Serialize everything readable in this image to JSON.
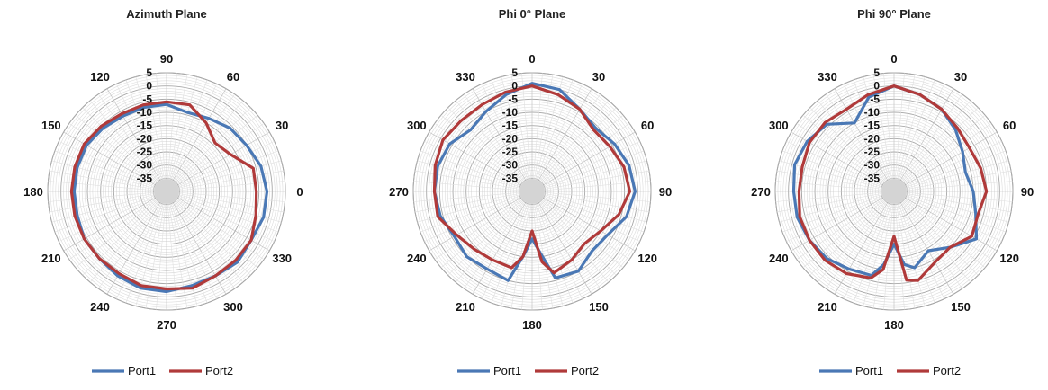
{
  "colors": {
    "port1": "#4a78b5",
    "port2": "#b03a3a",
    "grid": "#bdbdbd",
    "spoke": "#cfcfcf"
  },
  "chart_data": [
    {
      "type": "polar-line",
      "title": "Azimuth Plane",
      "radial_ticks": [
        "5",
        "0",
        "-5",
        "-10",
        "-15",
        "-20",
        "-25",
        "-30",
        "-35"
      ],
      "rlim": [
        -40,
        5
      ],
      "angle_labels": [
        {
          "deg": 90,
          "text": "90"
        },
        {
          "deg": 60,
          "text": "60"
        },
        {
          "deg": 30,
          "text": "30"
        },
        {
          "deg": 0,
          "text": "0"
        },
        {
          "deg": 330,
          "text": "330"
        },
        {
          "deg": 300,
          "text": "300"
        },
        {
          "deg": 270,
          "text": "270"
        },
        {
          "deg": 240,
          "text": "240"
        },
        {
          "deg": 210,
          "text": "210"
        },
        {
          "deg": 180,
          "text": "180"
        },
        {
          "deg": 150,
          "text": "150"
        },
        {
          "deg": 120,
          "text": "120"
        }
      ],
      "angle_convention": "counterclockwise-from-right",
      "legend": [
        "Port1",
        "Port2"
      ],
      "legend_position": "bottom",
      "series": [
        {
          "name": "Port1",
          "color": "#4a78b5",
          "angles": [
            0,
            15,
            30,
            45,
            60,
            75,
            90,
            105,
            120,
            135,
            150,
            165,
            180,
            195,
            210,
            225,
            240,
            255,
            270,
            285,
            300,
            315,
            330,
            345
          ],
          "values": [
            -2,
            -3,
            -5,
            -6,
            -8,
            -9,
            -7,
            -7,
            -7,
            -6,
            -5,
            -5,
            -5,
            -5,
            -4,
            -4,
            -3,
            -2,
            -2,
            -3,
            -3,
            -2,
            -3,
            -2
          ]
        },
        {
          "name": "Port2",
          "color": "#b03a3a",
          "angles": [
            0,
            15,
            30,
            45,
            60,
            75,
            90,
            105,
            120,
            135,
            150,
            165,
            180,
            195,
            210,
            225,
            240,
            255,
            270,
            285,
            300,
            315,
            330,
            345
          ],
          "values": [
            -6,
            -6,
            -12,
            -14,
            -10,
            -6,
            -6,
            -6,
            -6,
            -5,
            -4,
            -4,
            -4,
            -4,
            -4,
            -4,
            -4,
            -3,
            -3,
            -2,
            -3,
            -3,
            -3,
            -5
          ]
        }
      ]
    },
    {
      "type": "polar-line",
      "title": "Phi 0° Plane",
      "radial_ticks": [
        "5",
        "0",
        "-5",
        "-10",
        "-15",
        "-20",
        "-25",
        "-30",
        "-35"
      ],
      "rlim": [
        -40,
        5
      ],
      "angle_labels": [
        {
          "deg": 0,
          "text": "0"
        },
        {
          "deg": 30,
          "text": "30"
        },
        {
          "deg": 60,
          "text": "60"
        },
        {
          "deg": 90,
          "text": "90"
        },
        {
          "deg": 120,
          "text": "120"
        },
        {
          "deg": 150,
          "text": "150"
        },
        {
          "deg": 180,
          "text": "180"
        },
        {
          "deg": 210,
          "text": "210"
        },
        {
          "deg": 240,
          "text": "240"
        },
        {
          "deg": 270,
          "text": "270"
        },
        {
          "deg": 300,
          "text": "300"
        },
        {
          "deg": 330,
          "text": "330"
        }
      ],
      "angle_convention": "clockwise-from-top",
      "legend": [
        "Port1",
        "Port2"
      ],
      "legend_position": "bottom",
      "series": [
        {
          "name": "Port1",
          "color": "#4a78b5",
          "angles": [
            0,
            15,
            30,
            45,
            60,
            75,
            90,
            105,
            120,
            135,
            150,
            165,
            172,
            180,
            188,
            195,
            210,
            225,
            240,
            255,
            270,
            285,
            300,
            315,
            330,
            345
          ],
          "values": [
            1,
            0,
            -4,
            -6,
            -4,
            -2,
            -1,
            -3,
            -7,
            -8,
            -5,
            -6,
            -16,
            -22,
            -15,
            -5,
            -6,
            -5,
            -6,
            -4,
            -3,
            -3,
            -4,
            -7,
            -5,
            -2
          ]
        },
        {
          "name": "Port2",
          "color": "#b03a3a",
          "angles": [
            0,
            15,
            30,
            45,
            60,
            75,
            90,
            105,
            120,
            135,
            150,
            165,
            172,
            180,
            188,
            195,
            210,
            225,
            240,
            255,
            270,
            285,
            300,
            315,
            330,
            345
          ],
          "values": [
            0,
            -2,
            -4,
            -7,
            -6,
            -4,
            -3,
            -6,
            -10,
            -12,
            -10,
            -8,
            -13,
            -25,
            -15,
            -10,
            -10,
            -9,
            -7,
            -3,
            -3,
            -2,
            -1,
            -2,
            -2,
            -1
          ]
        }
      ]
    },
    {
      "type": "polar-line",
      "title": "Phi 90° Plane",
      "radial_ticks": [
        "5",
        "0",
        "-5",
        "-10",
        "-15",
        "-20",
        "-25",
        "-30",
        "-35"
      ],
      "rlim": [
        -40,
        5
      ],
      "angle_labels": [
        {
          "deg": 0,
          "text": "0"
        },
        {
          "deg": 30,
          "text": "30"
        },
        {
          "deg": 60,
          "text": "60"
        },
        {
          "deg": 90,
          "text": "90"
        },
        {
          "deg": 120,
          "text": "120"
        },
        {
          "deg": 150,
          "text": "150"
        },
        {
          "deg": 180,
          "text": "180"
        },
        {
          "deg": 210,
          "text": "210"
        },
        {
          "deg": 240,
          "text": "240"
        },
        {
          "deg": 270,
          "text": "270"
        },
        {
          "deg": 300,
          "text": "300"
        },
        {
          "deg": 330,
          "text": "330"
        }
      ],
      "angle_convention": "clockwise-from-top",
      "legend": [
        "Port1",
        "Port2"
      ],
      "legend_position": "bottom",
      "series": [
        {
          "name": "Port1",
          "color": "#4a78b5",
          "angles": [
            0,
            15,
            30,
            45,
            60,
            75,
            90,
            105,
            120,
            135,
            150,
            165,
            172,
            180,
            188,
            195,
            210,
            225,
            240,
            255,
            270,
            285,
            300,
            315,
            330,
            345
          ],
          "values": [
            0,
            -2,
            -4,
            -7,
            -10,
            -12,
            -10,
            -8,
            -4,
            -10,
            -14,
            -10,
            -12,
            -20,
            -12,
            -7,
            -6,
            -4,
            -3,
            -2,
            -2,
            -1,
            -2,
            -4,
            -10,
            -3
          ]
        },
        {
          "name": "Port2",
          "color": "#b03a3a",
          "angles": [
            0,
            15,
            30,
            45,
            60,
            75,
            90,
            105,
            120,
            135,
            150,
            165,
            172,
            180,
            188,
            195,
            210,
            225,
            240,
            255,
            270,
            285,
            300,
            315,
            330,
            345
          ],
          "values": [
            0,
            -2,
            -4,
            -6,
            -7,
            -6,
            -5,
            -7,
            -6,
            -10,
            -9,
            -5,
            -6,
            -23,
            -10,
            -6,
            -4,
            -3,
            -3,
            -3,
            -4,
            -4,
            -3,
            -3,
            -4,
            -2
          ]
        }
      ]
    }
  ]
}
